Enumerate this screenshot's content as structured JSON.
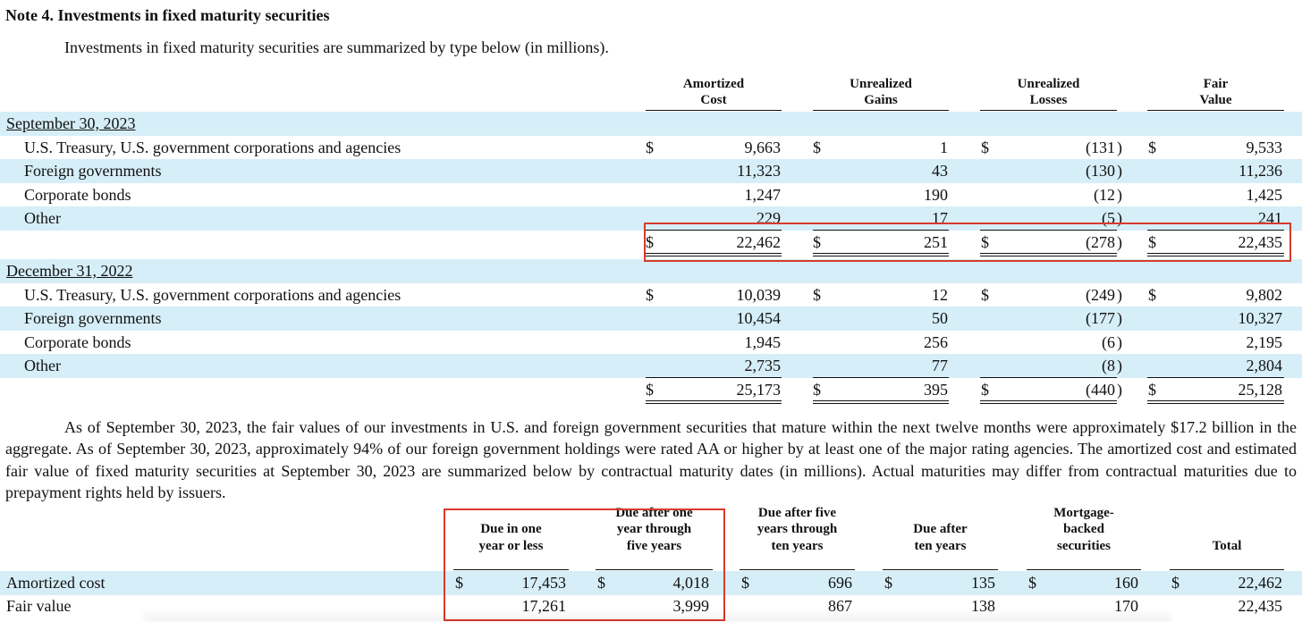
{
  "note": {
    "title": "Note 4. Investments in fixed maturity securities",
    "intro": "Investments in fixed maturity securities are summarized by type below (in millions)."
  },
  "table1": {
    "headers": [
      [
        "Amortized",
        "Cost"
      ],
      [
        "Unrealized",
        "Gains"
      ],
      [
        "Unrealized",
        "Losses"
      ],
      [
        "Fair",
        "Value"
      ]
    ],
    "currency_symbol": "$",
    "sections": [
      {
        "label": "September 30, 2023",
        "rows": [
          {
            "label": "U.S. Treasury, U.S. government corporations and agencies",
            "values": [
              "9,663",
              "1",
              "(131",
              "9,533"
            ],
            "dollar": true
          },
          {
            "label": "Foreign governments",
            "values": [
              "11,323",
              "43",
              "(130",
              "11,236"
            ],
            "dollar": false
          },
          {
            "label": "Corporate bonds",
            "values": [
              "1,247",
              "190",
              "(12",
              "1,425"
            ],
            "dollar": false
          },
          {
            "label": "Other",
            "values": [
              "229",
              "17",
              "(5",
              "241"
            ],
            "dollar": false
          }
        ],
        "total": [
          "22,462",
          "251",
          "(278",
          "22,435"
        ]
      },
      {
        "label": "December 31, 2022",
        "rows": [
          {
            "label": "U.S. Treasury, U.S. government corporations and agencies",
            "values": [
              "10,039",
              "12",
              "(249",
              "9,802"
            ],
            "dollar": true
          },
          {
            "label": "Foreign governments",
            "values": [
              "10,454",
              "50",
              "(177",
              "10,327"
            ],
            "dollar": false
          },
          {
            "label": "Corporate bonds",
            "values": [
              "1,945",
              "256",
              "(6",
              "2,195"
            ],
            "dollar": false
          },
          {
            "label": "Other",
            "values": [
              "2,735",
              "77",
              "(8",
              "2,804"
            ],
            "dollar": false
          }
        ],
        "total": [
          "25,173",
          "395",
          "(440",
          "25,128"
        ]
      }
    ]
  },
  "paragraph": "As of September 30, 2023, the fair values of our investments in U.S. and foreign government securities that mature within the next twelve months were approximately $17.2 billion in the aggregate. As of September 30, 2023, approximately 94% of our foreign government holdings were rated AA or higher by at least one of the major rating agencies. The amortized cost and estimated fair value of fixed maturity securities at September 30, 2023 are summarized below by contractual maturity dates (in millions). Actual maturities may differ from contractual maturities due to prepayment rights held by issuers.",
  "table2": {
    "headers": [
      [
        "Due in one",
        "year or less"
      ],
      [
        "Due after one",
        "year through",
        "five years"
      ],
      [
        "Due after five",
        "years through",
        "ten years"
      ],
      [
        "Due after",
        "ten years"
      ],
      [
        "Mortgage-",
        "backed",
        "securities"
      ],
      [
        "Total"
      ]
    ],
    "rows": [
      {
        "label": "Amortized cost",
        "values": [
          "17,453",
          "4,018",
          "696",
          "135",
          "160",
          "22,462"
        ],
        "dollar": true
      },
      {
        "label": "Fair value",
        "values": [
          "17,261",
          "3,999",
          "867",
          "138",
          "170",
          "22,435"
        ],
        "dollar": false
      }
    ]
  },
  "colors": {
    "row_band": "#d6eef8",
    "highlight_box": "#d93a2b"
  }
}
